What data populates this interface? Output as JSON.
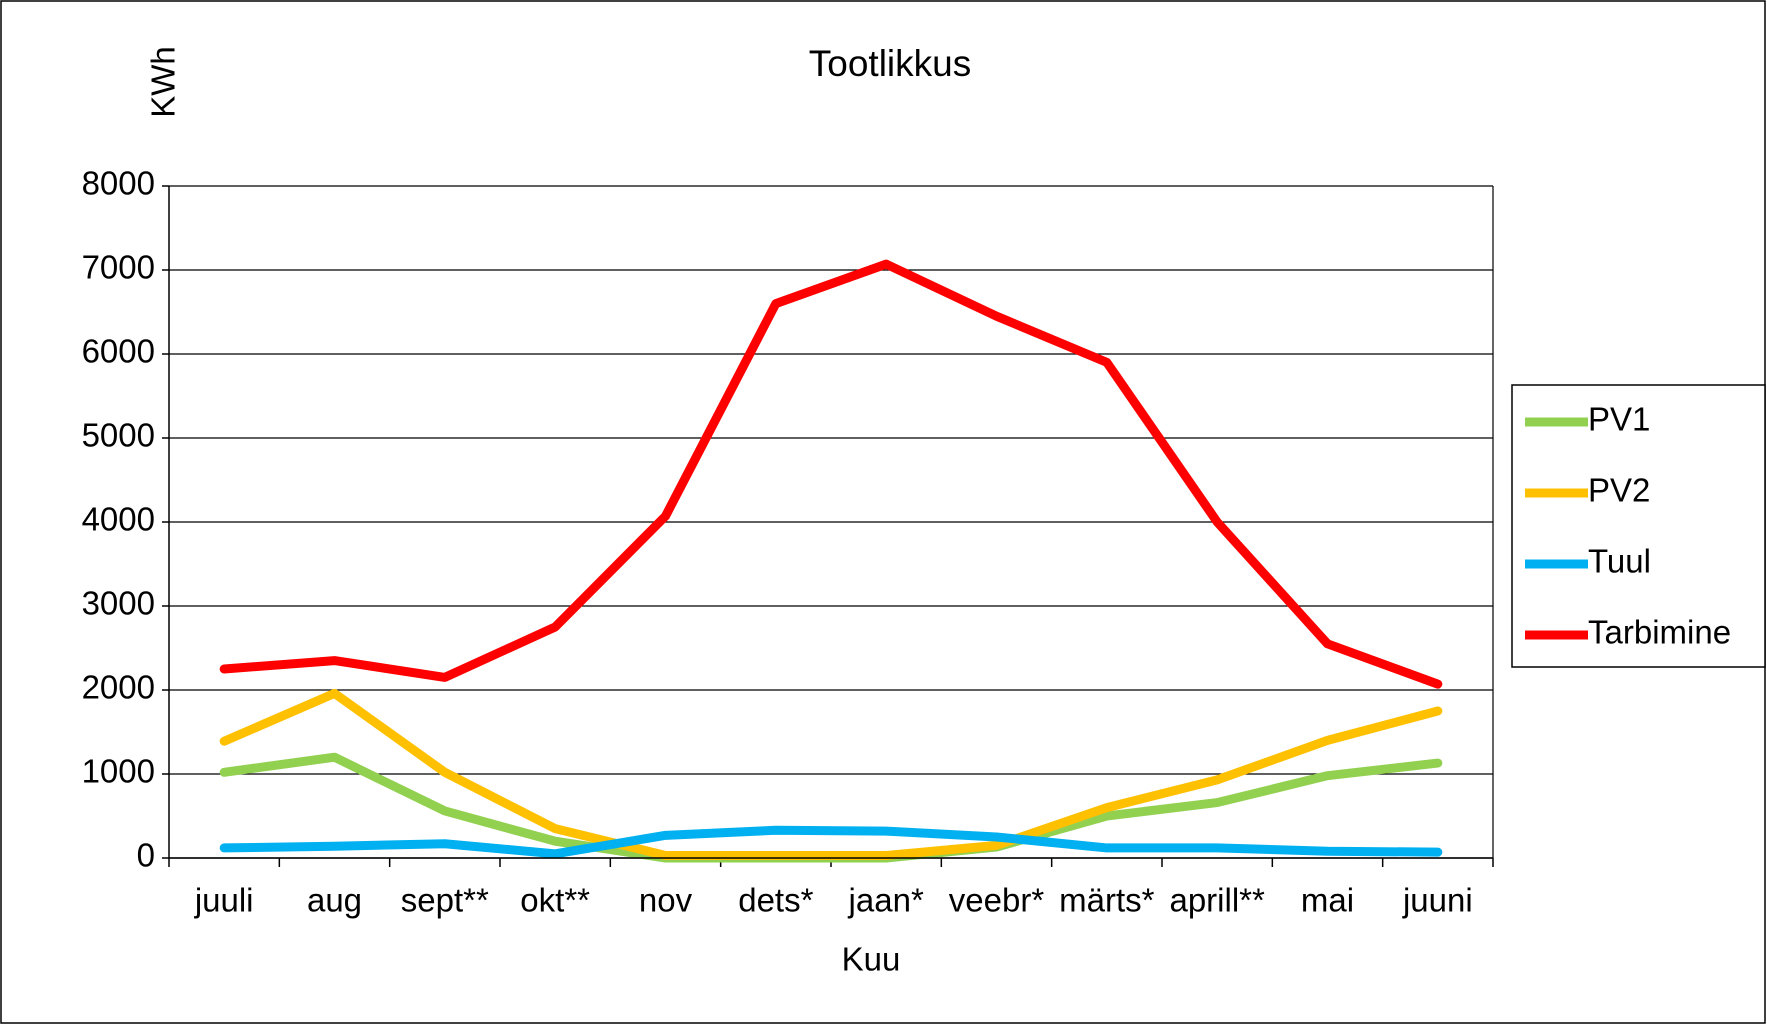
{
  "chart_data": {
    "type": "line",
    "title": "Tootlikkus",
    "y_label": "KWh",
    "x_label": "Kuu",
    "categories": [
      "juuli",
      "aug",
      "sept**",
      "okt**",
      "nov",
      "dets*",
      "jaan*",
      "veebr*",
      "märts*",
      "aprill**",
      "mai",
      "juuni"
    ],
    "series": [
      {
        "name": "PV1",
        "color": "#92d050",
        "values": [
          1020,
          1200,
          560,
          200,
          0,
          0,
          0,
          130,
          500,
          660,
          980,
          1130
        ]
      },
      {
        "name": "PV2",
        "color": "#ffc000",
        "values": [
          1390,
          1960,
          1020,
          350,
          30,
          30,
          30,
          150,
          600,
          930,
          1400,
          1750
        ]
      },
      {
        "name": "Tuul",
        "color": "#00b0f0",
        "values": [
          120,
          140,
          170,
          50,
          270,
          330,
          320,
          250,
          120,
          120,
          80,
          70
        ]
      },
      {
        "name": "Tarbimine",
        "color": "#ff0000",
        "values": [
          2250,
          2350,
          2150,
          2750,
          4070,
          6600,
          7070,
          6450,
          5900,
          4000,
          2550,
          2070
        ]
      }
    ],
    "ylim": [
      0,
      8000
    ],
    "yticks": [
      0,
      1000,
      2000,
      3000,
      4000,
      5000,
      6000,
      7000,
      8000
    ],
    "grid": true,
    "legend": "right"
  }
}
